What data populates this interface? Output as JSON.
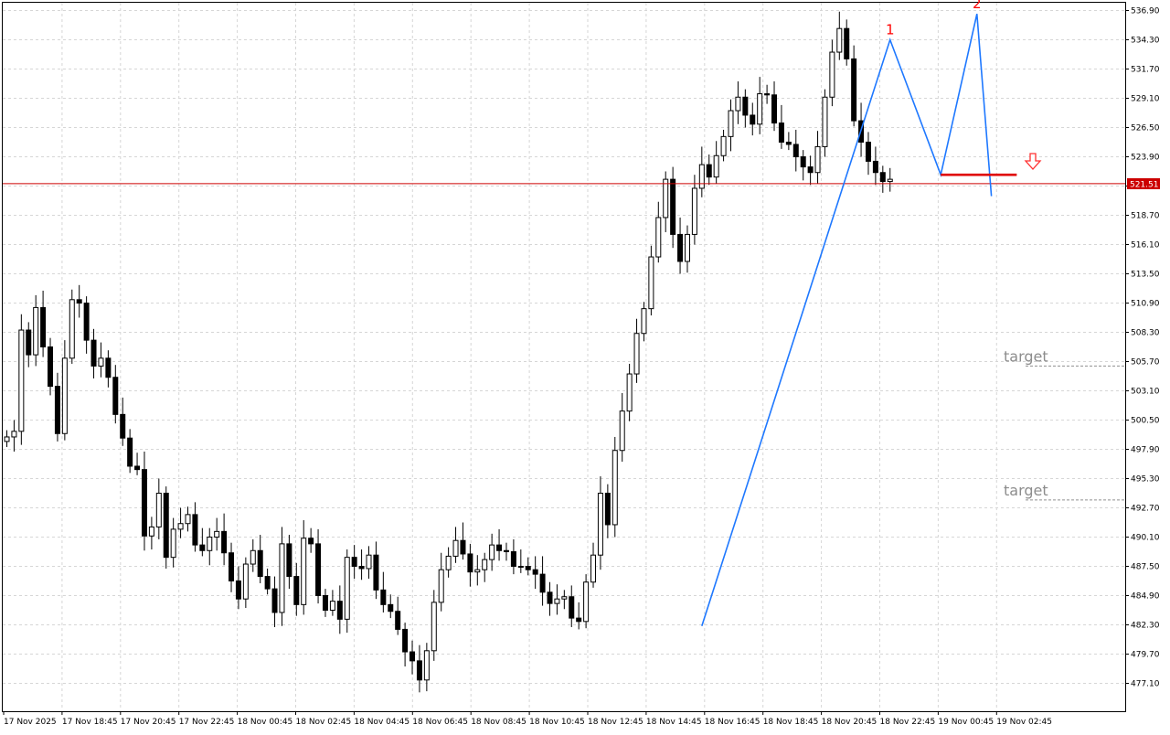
{
  "chart_data": {
    "type": "candlestick",
    "title": "",
    "xlabel": "",
    "ylabel": "",
    "ylim": [
      474.5,
      538.0
    ],
    "y_ticks": [
      "536.90",
      "534.30",
      "531.70",
      "529.10",
      "526.50",
      "523.90",
      "521.30",
      "518.70",
      "516.10",
      "513.50",
      "510.90",
      "508.30",
      "505.70",
      "503.10",
      "500.50",
      "497.90",
      "495.30",
      "492.70",
      "490.10",
      "487.50",
      "484.90",
      "482.30",
      "479.70",
      "477.10"
    ],
    "x_ticks": [
      "17 Nov 2025",
      "17 Nov 18:45",
      "17 Nov 20:45",
      "17 Nov 22:45",
      "18 Nov 00:45",
      "18 Nov 02:45",
      "18 Nov 04:45",
      "18 Nov 06:45",
      "18 Nov 08:45",
      "18 Nov 10:45",
      "18 Nov 12:45",
      "18 Nov 14:45",
      "18 Nov 16:45",
      "18 Nov 18:45",
      "18 Nov 20:45",
      "18 Nov 22:45",
      "19 Nov 00:45",
      "19 Nov 02:45"
    ],
    "grid": true,
    "bar_count": 138,
    "current_price": "521.51",
    "current_price_color": "#cc0000",
    "candles_close": [
      499.0,
      499.5,
      508.5,
      506.3,
      510.5,
      507.0,
      503.5,
      499.3,
      506.0,
      511.2,
      510.9,
      507.6,
      505.3,
      506.0,
      504.3,
      501.0,
      498.9,
      496.4,
      496.1,
      490.2,
      491.0,
      494.0,
      488.3,
      490.8,
      491.3,
      492.1,
      489.4,
      488.9,
      490.1,
      490.6,
      488.7,
      486.2,
      484.6,
      487.7,
      488.9,
      486.6,
      485.5,
      483.4,
      489.5,
      486.6,
      484.1,
      490.0,
      489.5,
      484.9,
      483.6,
      484.4,
      482.8,
      488.3,
      487.5,
      487.3,
      488.5,
      485.4,
      484.1,
      483.5,
      481.9,
      479.9,
      479.1,
      477.4,
      480.0,
      484.3,
      487.2,
      488.4,
      489.8,
      488.6,
      487.0,
      487.2,
      488.1,
      489.4,
      488.9,
      488.8,
      487.5,
      487.5,
      487.2,
      486.8,
      485.2,
      484.2,
      484.6,
      484.8,
      482.9,
      482.6,
      486.1,
      488.5,
      494.0,
      491.2,
      497.8,
      501.3,
      504.6,
      508.2,
      510.4,
      515.0,
      518.5,
      521.9,
      517.0,
      514.6,
      517.0,
      521.1,
      523.2,
      522.1,
      524.0,
      525.7,
      528.0,
      529.2,
      527.6,
      526.8,
      529.5,
      529.4,
      526.9,
      525.2,
      525.0,
      523.9,
      523.0,
      522.5,
      524.8,
      529.2,
      533.2,
      535.3,
      532.6,
      527.1,
      525.2,
      523.5,
      522.5,
      521.7,
      521.9
    ],
    "pattern": {
      "type": "double-top",
      "peak_labels": [
        "1",
        "2"
      ],
      "line_color": "#1e78ff",
      "neckline_color": "#e00000",
      "signal": "down-arrow",
      "targets": [
        {
          "label": "target",
          "price": 505.3
        },
        {
          "label": "target",
          "price": 493.4
        }
      ]
    }
  }
}
